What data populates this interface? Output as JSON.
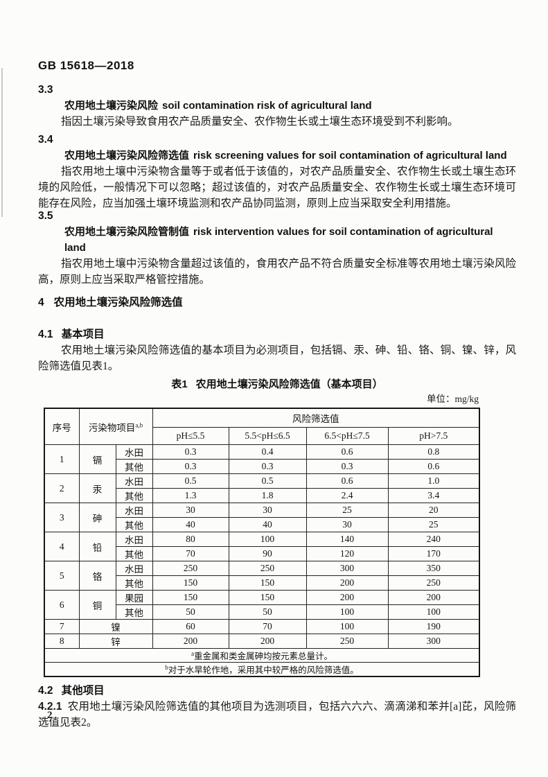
{
  "header": {
    "standard_number": "GB 15618—2018"
  },
  "sections": [
    {
      "number": "3.3",
      "term_zh": "农用地土壤污染风险",
      "term_en": "soil contamination risk of agricultural land",
      "body": "指因土壤污染导致食用农产品质量安全、农作物生长或土壤生态环境受到不利影响。"
    },
    {
      "number": "3.4",
      "term_zh": "农用地土壤污染风险筛选值",
      "term_en": "risk screening values for soil contamination of agricultural land",
      "body": "指农用地土壤中污染物含量等于或者低于该值的，对农产品质量安全、农作物生长或土壤生态环境的风险低，一般情况下可以忽略；超过该值的，对农产品质量安全、农作物生长或土壤生态环境可能存在风险，应当加强土壤环境监测和农产品协同监测，原则上应当采取安全利用措施。"
    },
    {
      "number": "3.5",
      "term_zh": "农用地土壤污染风险管制值",
      "term_en": "risk intervention values for soil contamination of agricultural land",
      "body": "指农用地土壤中污染物含量超过该值的，食用农产品不符合质量安全标准等农用地土壤污染风险高，原则上应当采取严格管控措施。"
    }
  ],
  "chapter_4": {
    "number": "4",
    "title": "农用地土壤污染风险筛选值"
  },
  "section_4_1": {
    "number": "4.1",
    "title": "基本项目",
    "paragraph": "农用地土壤污染风险筛选值的基本项目为必测项目，包括镉、汞、砷、铅、铬、铜、镍、锌，风险筛选值见表1。"
  },
  "table1": {
    "caption_label": "表1",
    "caption_title": "农用地土壤污染风险筛选值（基本项目）",
    "unit_label": "单位：mg/kg",
    "col_headers": {
      "index": "序号",
      "pollutant": "污染物项目",
      "pollutant_sup": "a,b",
      "group": "风险筛选值",
      "ph_cols": [
        "pH≤5.5",
        "5.5<pH≤6.5",
        "6.5<pH≤7.5",
        "pH>7.5"
      ]
    },
    "rows": [
      {
        "index": "1",
        "element": "镉",
        "sub": [
          {
            "type": "水田",
            "values": [
              "0.3",
              "0.4",
              "0.6",
              "0.8"
            ]
          },
          {
            "type": "其他",
            "values": [
              "0.3",
              "0.3",
              "0.3",
              "0.6"
            ]
          }
        ]
      },
      {
        "index": "2",
        "element": "汞",
        "sub": [
          {
            "type": "水田",
            "values": [
              "0.5",
              "0.5",
              "0.6",
              "1.0"
            ]
          },
          {
            "type": "其他",
            "values": [
              "1.3",
              "1.8",
              "2.4",
              "3.4"
            ]
          }
        ]
      },
      {
        "index": "3",
        "element": "砷",
        "sub": [
          {
            "type": "水田",
            "values": [
              "30",
              "30",
              "25",
              "20"
            ]
          },
          {
            "type": "其他",
            "values": [
              "40",
              "40",
              "30",
              "25"
            ]
          }
        ]
      },
      {
        "index": "4",
        "element": "铅",
        "sub": [
          {
            "type": "水田",
            "values": [
              "80",
              "100",
              "140",
              "240"
            ]
          },
          {
            "type": "其他",
            "values": [
              "70",
              "90",
              "120",
              "170"
            ]
          }
        ]
      },
      {
        "index": "5",
        "element": "铬",
        "sub": [
          {
            "type": "水田",
            "values": [
              "250",
              "250",
              "300",
              "350"
            ]
          },
          {
            "type": "其他",
            "values": [
              "150",
              "150",
              "200",
              "250"
            ]
          }
        ]
      },
      {
        "index": "6",
        "element": "铜",
        "sub": [
          {
            "type": "果园",
            "values": [
              "150",
              "150",
              "200",
              "200"
            ]
          },
          {
            "type": "其他",
            "values": [
              "50",
              "50",
              "100",
              "100"
            ]
          }
        ]
      },
      {
        "index": "7",
        "element": "镍",
        "sub": [
          {
            "type": null,
            "values": [
              "60",
              "70",
              "100",
              "190"
            ]
          }
        ]
      },
      {
        "index": "8",
        "element": "锌",
        "sub": [
          {
            "type": null,
            "values": [
              "200",
              "200",
              "250",
              "300"
            ]
          }
        ]
      }
    ],
    "footnotes": [
      {
        "sup": "a",
        "text": "重金属和类金属砷均按元素总量计。"
      },
      {
        "sup": "b",
        "text": "对于水旱轮作地，采用其中较严格的风险筛选值。"
      }
    ]
  },
  "section_4_2": {
    "number": "4.2",
    "title": "其他项目"
  },
  "section_4_2_1": {
    "number": "4.2.1",
    "paragraph": "农用地土壤污染风险筛选值的其他项目为选测项目，包括六六六、滴滴涕和苯并[a]芘，风险筛选值见表2。"
  },
  "footer": {
    "page_number": "2"
  }
}
